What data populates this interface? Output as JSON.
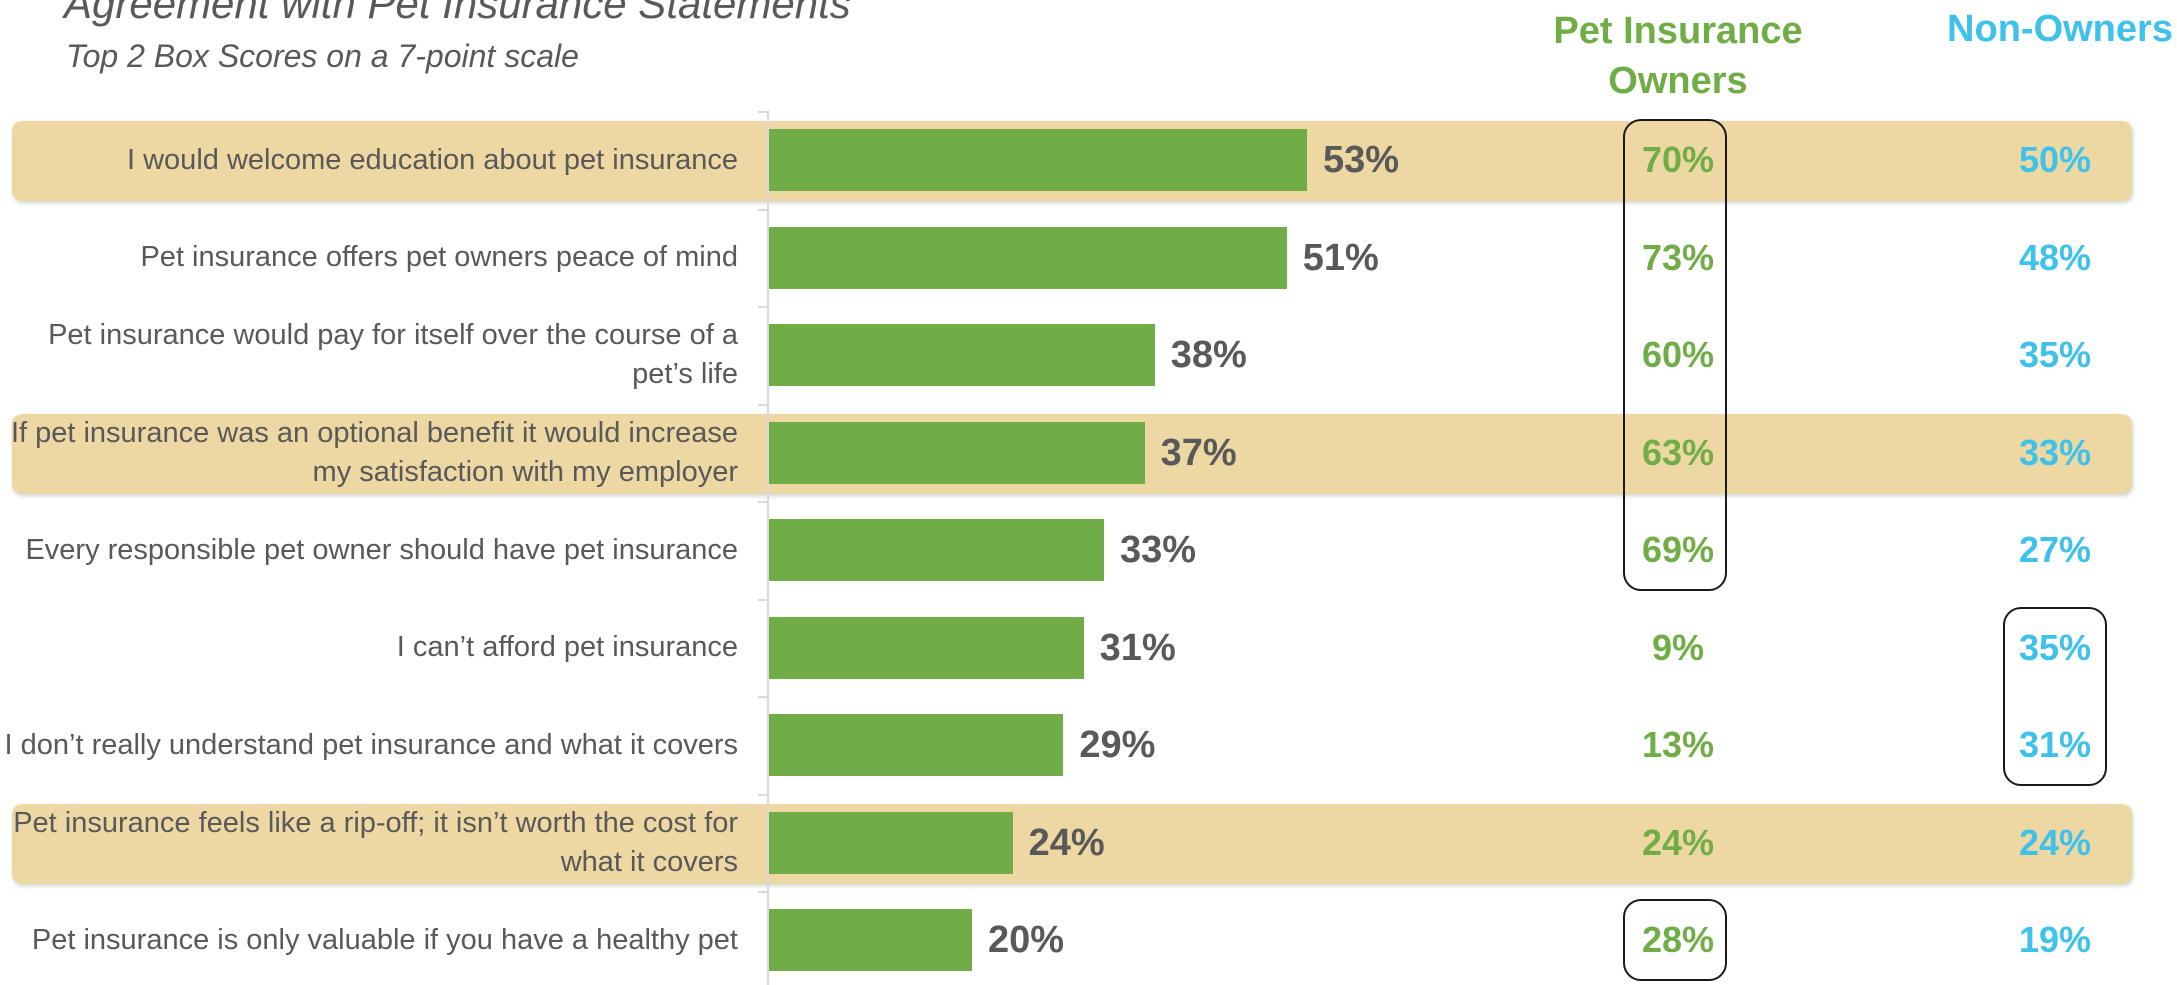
{
  "title": "Agreement with Pet Insurance Statements",
  "subtitle": "Top 2 Box Scores on a 7-point scale",
  "columns": {
    "owners": "Pet Insurance Owners",
    "non_owners": "Non-Owners"
  },
  "chart_data": {
    "type": "bar",
    "orientation": "horizontal",
    "title": "Agreement with Pet Insurance Statements",
    "subtitle": "Top 2 Box Scores on a 7-point scale",
    "xlim": [
      0,
      100
    ],
    "grid": false,
    "bar_color": "#70AD47",
    "categories": [
      "I would welcome education about pet insurance",
      "Pet insurance offers pet owners peace of mind",
      "Pet insurance would pay for itself over the course of a pet’s life",
      "If pet insurance was an optional benefit it would increase my satisfaction with my employer",
      "Every responsible pet owner should have pet insurance",
      "I can’t afford pet insurance",
      "I don’t really understand pet insurance and what it covers",
      "Pet insurance feels like a rip-off; it isn’t worth the cost for what it covers",
      "Pet insurance is only valuable if you have a healthy pet"
    ],
    "values": [
      53,
      51,
      38,
      37,
      33,
      31,
      29,
      24,
      20
    ],
    "value_labels": [
      "53%",
      "51%",
      "38%",
      "37%",
      "33%",
      "31%",
      "29%",
      "24%",
      "20%"
    ],
    "owners_labels": [
      "70%",
      "73%",
      "60%",
      "63%",
      "69%",
      "9%",
      "13%",
      "24%",
      "28%"
    ],
    "non_owners_labels": [
      "50%",
      "48%",
      "35%",
      "33%",
      "27%",
      "35%",
      "31%",
      "24%",
      "19%"
    ],
    "owners_color": "#70AD47",
    "non_owners_color": "#3EC1EA",
    "highlight_color": "#EDD8A3",
    "highlighted_rows": [
      0,
      3,
      7
    ]
  }
}
